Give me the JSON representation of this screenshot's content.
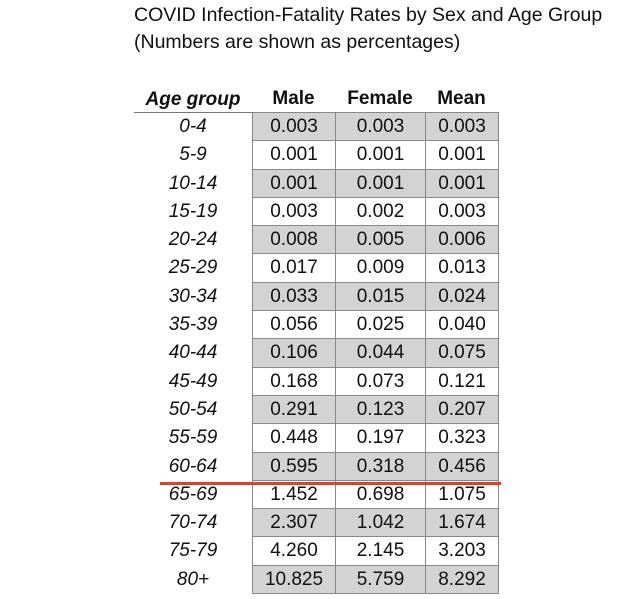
{
  "title": {
    "line1": "COVID Infection-Fatality Rates by Sex and Age Group",
    "line2": "(Numbers are shown as percentages)"
  },
  "table": {
    "headers": [
      "Age group",
      "Male",
      "Female",
      "Mean"
    ],
    "rows": [
      {
        "age": "0-4",
        "male": "0.003",
        "female": "0.003",
        "mean": "0.003"
      },
      {
        "age": "5-9",
        "male": "0.001",
        "female": "0.001",
        "mean": "0.001"
      },
      {
        "age": "10-14",
        "male": "0.001",
        "female": "0.001",
        "mean": "0.001"
      },
      {
        "age": "15-19",
        "male": "0.003",
        "female": "0.002",
        "mean": "0.003"
      },
      {
        "age": "20-24",
        "male": "0.008",
        "female": "0.005",
        "mean": "0.006"
      },
      {
        "age": "25-29",
        "male": "0.017",
        "female": "0.009",
        "mean": "0.013"
      },
      {
        "age": "30-34",
        "male": "0.033",
        "female": "0.015",
        "mean": "0.024"
      },
      {
        "age": "35-39",
        "male": "0.056",
        "female": "0.025",
        "mean": "0.040"
      },
      {
        "age": "40-44",
        "male": "0.106",
        "female": "0.044",
        "mean": "0.075"
      },
      {
        "age": "45-49",
        "male": "0.168",
        "female": "0.073",
        "mean": "0.121"
      },
      {
        "age": "50-54",
        "male": "0.291",
        "female": "0.123",
        "mean": "0.207"
      },
      {
        "age": "55-59",
        "male": "0.448",
        "female": "0.197",
        "mean": "0.323"
      },
      {
        "age": "60-64",
        "male": "0.595",
        "female": "0.318",
        "mean": "0.456"
      },
      {
        "age": "65-69",
        "male": "1.452",
        "female": "0.698",
        "mean": "1.075"
      },
      {
        "age": "70-74",
        "male": "2.307",
        "female": "1.042",
        "mean": "1.674"
      },
      {
        "age": "75-79",
        "male": "4.260",
        "female": "2.145",
        "mean": "3.203"
      },
      {
        "age": "80+",
        "male": "10.825",
        "female": "5.759",
        "mean": "8.292"
      }
    ]
  },
  "colors": {
    "shade": "#d3d3d3",
    "divider": "#e0402a"
  }
}
